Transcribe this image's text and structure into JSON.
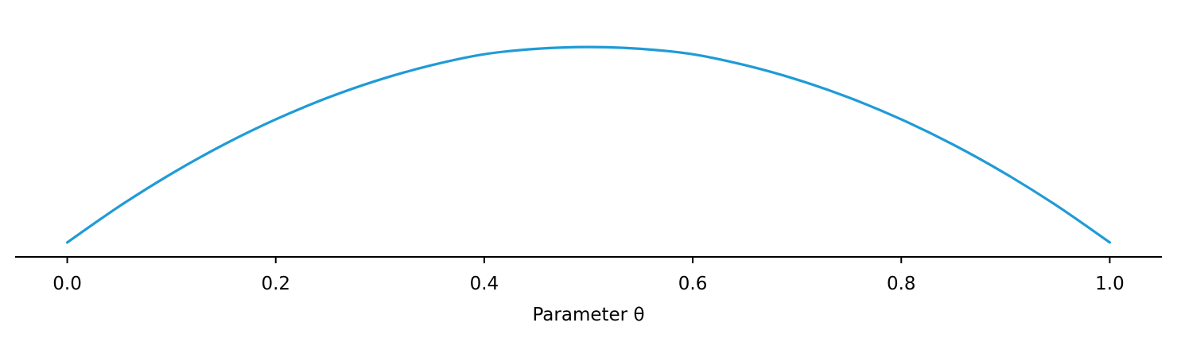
{
  "chart_data": {
    "type": "line",
    "title": "",
    "xlabel": "Parameter θ",
    "ylabel": "",
    "xlim": [
      -0.05,
      1.05
    ],
    "x_ticks": [
      "0.0",
      "0.2",
      "0.4",
      "0.6",
      "0.8",
      "1.0"
    ],
    "x_tick_values": [
      0.0,
      0.2,
      0.4,
      0.6,
      0.8,
      1.0
    ],
    "y_axis_visible": false,
    "grid": false,
    "legend": "none",
    "series": [
      {
        "color": "#1f9bd7",
        "x": [
          0.0,
          0.05,
          0.1,
          0.15,
          0.2,
          0.25,
          0.3,
          0.35,
          0.4,
          0.45,
          0.5,
          0.55,
          0.6,
          0.65,
          0.7,
          0.75,
          0.8,
          0.85,
          0.9,
          0.95,
          1.0
        ],
        "y": [
          0.04,
          0.14,
          0.23,
          0.31,
          0.38,
          0.44,
          0.49,
          0.53,
          0.56,
          0.575,
          0.58,
          0.575,
          0.56,
          0.53,
          0.49,
          0.44,
          0.38,
          0.31,
          0.23,
          0.14,
          0.04
        ]
      }
    ],
    "ylim": [
      0,
      0.6
    ]
  }
}
